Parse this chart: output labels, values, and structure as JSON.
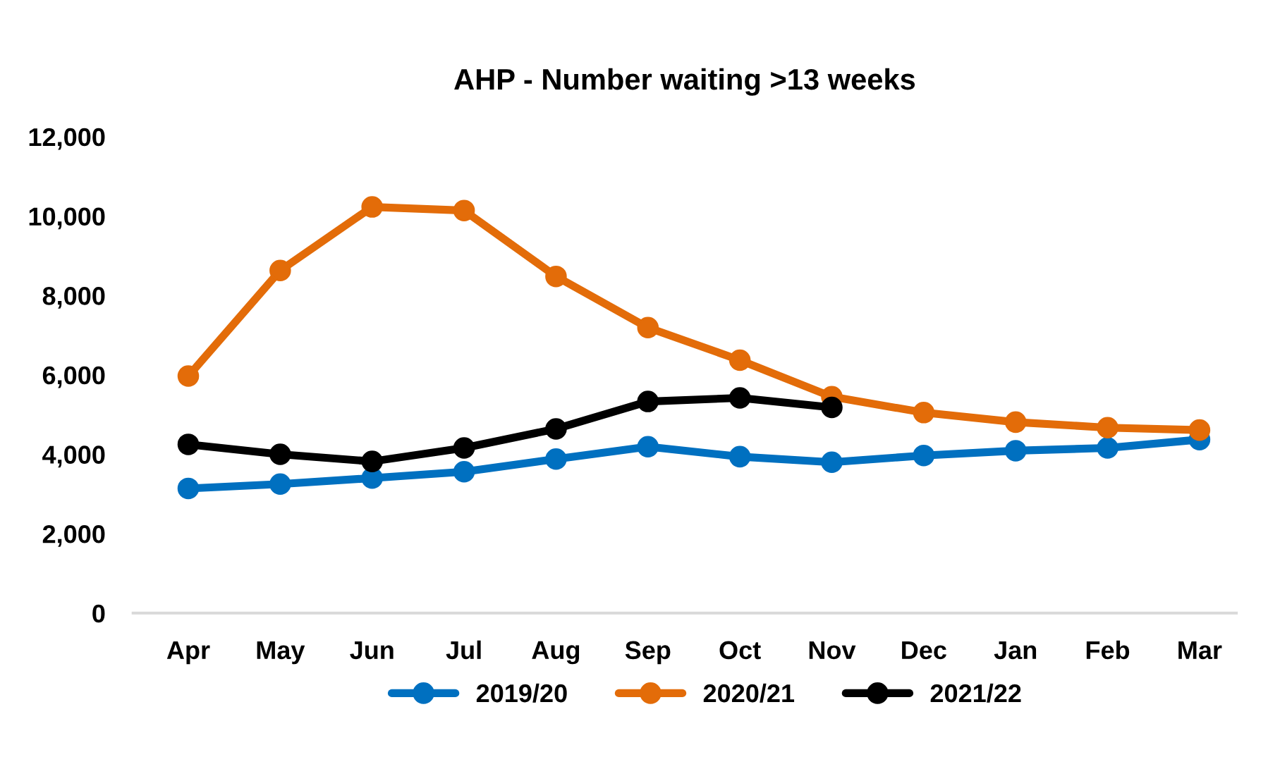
{
  "chart_data": {
    "type": "line",
    "title": "AHP - Number waiting >13 weeks",
    "categories": [
      "Apr",
      "May",
      "Jun",
      "Jul",
      "Aug",
      "Sep",
      "Oct",
      "Nov",
      "Dec",
      "Jan",
      "Feb",
      "Mar"
    ],
    "series": [
      {
        "name": "2019/20",
        "color": "#0070c0",
        "values": [
          3140,
          3250,
          3400,
          3560,
          3880,
          4190,
          3940,
          3800,
          3970,
          4090,
          4160,
          4370
        ]
      },
      {
        "name": "2020/21",
        "color": "#e36c09",
        "values": [
          5970,
          8630,
          10230,
          10140,
          8480,
          7190,
          6370,
          5450,
          5050,
          4810,
          4670,
          4610
        ]
      },
      {
        "name": "2021/22",
        "color": "#000000",
        "values": [
          4250,
          4000,
          3820,
          4160,
          4640,
          5330,
          5420,
          5180,
          null,
          null,
          null,
          null
        ]
      }
    ],
    "ylim": [
      0,
      12000
    ],
    "yticks": [
      {
        "value": 0,
        "label": "0"
      },
      {
        "value": 2000,
        "label": "2,000"
      },
      {
        "value": 4000,
        "label": "4,000"
      },
      {
        "value": 6000,
        "label": "6,000"
      },
      {
        "value": 8000,
        "label": "8,000"
      },
      {
        "value": 10000,
        "label": "10,000"
      },
      {
        "value": 12000,
        "label": "12,000"
      }
    ],
    "grid": false,
    "legend": "bottom",
    "marker": "circle",
    "line_style": "solid"
  }
}
